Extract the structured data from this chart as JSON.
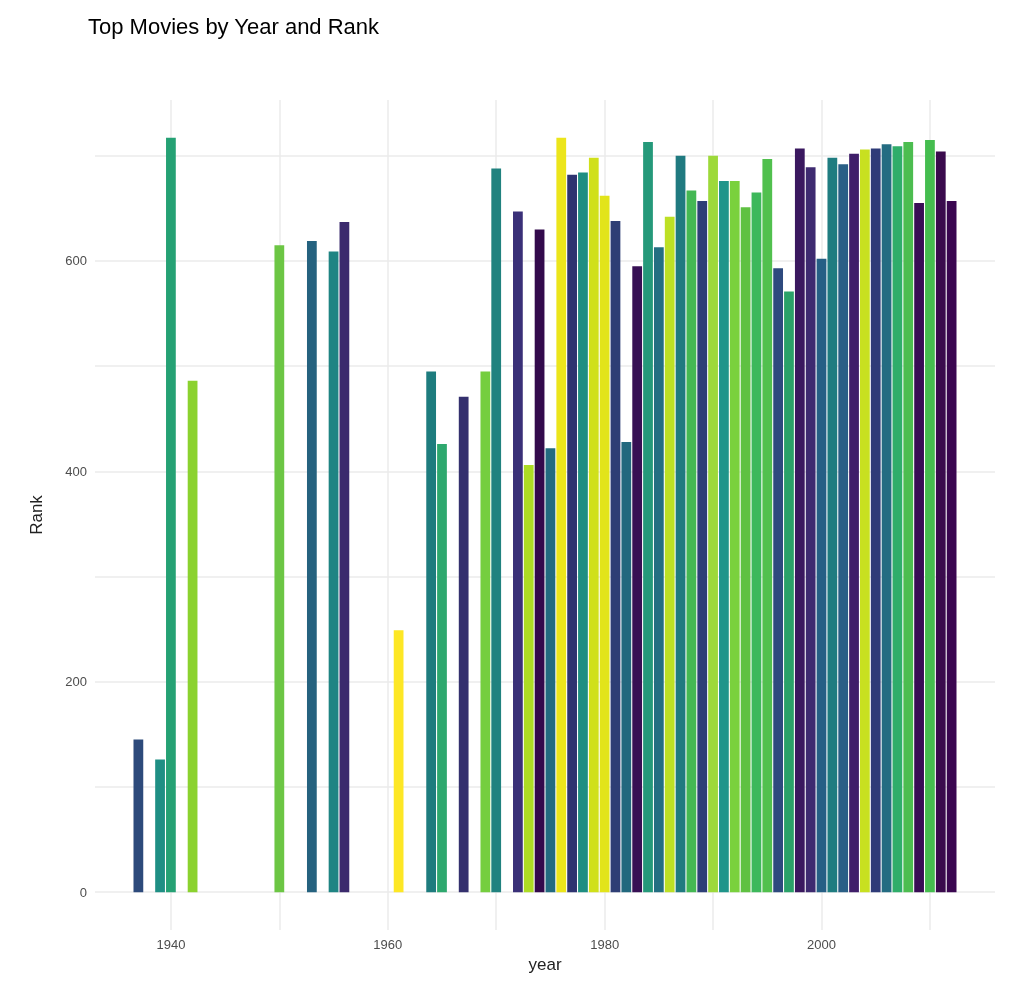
{
  "chart_data": {
    "type": "bar",
    "title": "Top Movies by Year and Rank",
    "xlabel": "year",
    "ylabel": "Rank",
    "x": [
      1937,
      1939,
      1940,
      1942,
      1950,
      1953,
      1955,
      1956,
      1961,
      1964,
      1965,
      1967,
      1969,
      1970,
      1972,
      1973,
      1974,
      1975,
      1976,
      1977,
      1978,
      1979,
      1980,
      1981,
      1982,
      1983,
      1984,
      1985,
      1986,
      1987,
      1988,
      1989,
      1990,
      1991,
      1992,
      1993,
      1994,
      1995,
      1996,
      1997,
      1998,
      1999,
      2000,
      2001,
      2002,
      2003,
      2004,
      2005,
      2006,
      2007,
      2008,
      2009,
      2010,
      2011,
      2012
    ],
    "values": [
      145,
      126,
      717,
      486,
      615,
      619,
      609,
      637,
      249,
      495,
      426,
      471,
      495,
      688,
      647,
      406,
      630,
      422,
      717,
      682,
      684,
      698,
      662,
      638,
      428,
      595,
      713,
      613,
      642,
      700,
      667,
      657,
      700,
      676,
      676,
      651,
      665,
      697,
      593,
      571,
      707,
      689,
      602,
      698,
      692,
      702,
      706,
      707,
      711,
      709,
      713,
      655,
      715,
      704,
      657
    ],
    "colors": [
      "#2d4a7b",
      "#1f8f84",
      "#25a174",
      "#8bd22f",
      "#6cc644",
      "#25627f",
      "#1f8483",
      "#3b2a6d",
      "#fde725",
      "#1e7c7e",
      "#2ea86e",
      "#34306e",
      "#75ce3f",
      "#20827f",
      "#3a3078",
      "#addc24",
      "#330a4c",
      "#236b80",
      "#ece51b",
      "#2e3370",
      "#1f8e82",
      "#d0e01a",
      "#e2e41a",
      "#2e3e75",
      "#22687e",
      "#371054",
      "#25997a",
      "#246f82",
      "#bde025",
      "#207a80",
      "#44b853",
      "#2e3f77",
      "#9dd93a",
      "#1f958a",
      "#7ad13d",
      "#5fc142",
      "#3db85b",
      "#51c04e",
      "#2e4a7e",
      "#2aa169",
      "#3a185f",
      "#3e2a70",
      "#265f85",
      "#1f7c80",
      "#2a5f86",
      "#3f1e6a",
      "#c8e020",
      "#2e3b78",
      "#246c82",
      "#2fad6a",
      "#4cbd50",
      "#380d55",
      "#45bd4f",
      "#3a0b4d",
      "#3a0650"
    ],
    "xlim": [
      1933,
      2016
    ],
    "xticks": [
      {
        "value": 1940,
        "label": "1940"
      },
      {
        "value": 1950,
        "label": null
      },
      {
        "value": 1960,
        "label": "1960"
      },
      {
        "value": 1970,
        "label": null
      },
      {
        "value": 1980,
        "label": "1980"
      },
      {
        "value": 1990,
        "label": null
      },
      {
        "value": 2000,
        "label": "2000"
      },
      {
        "value": 2010,
        "label": null
      }
    ],
    "ylim": [
      -36,
      753
    ],
    "yticks": [
      0,
      {
        "value": 100,
        "label": null
      },
      200,
      {
        "value": 300,
        "label": null
      },
      400,
      {
        "value": 500,
        "label": null
      },
      600,
      {
        "value": 700,
        "label": null
      }
    ],
    "grid": true
  }
}
